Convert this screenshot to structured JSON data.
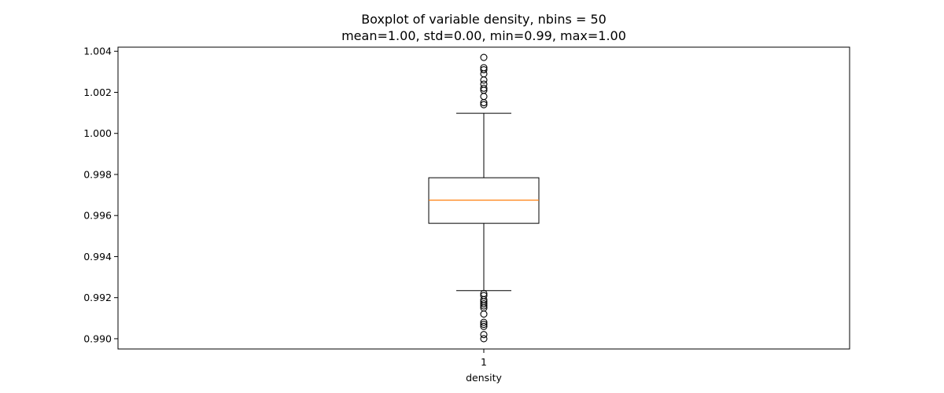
{
  "chart_data": {
    "type": "boxplot",
    "title_line1": "Boxplot of variable density, nbins = 50",
    "title_line2": "mean=1.00, std=0.00, min=0.99, max=1.00",
    "xlabel": "density",
    "x_tick_labels": [
      "1"
    ],
    "ylim": [
      0.9895,
      1.0042
    ],
    "y_ticks": [
      0.99,
      0.992,
      0.994,
      0.996,
      0.998,
      1.0,
      1.002,
      1.004
    ],
    "y_tick_labels": [
      "0.990",
      "0.992",
      "0.994",
      "0.996",
      "0.998",
      "1.000",
      "1.002",
      "1.004"
    ],
    "series": [
      {
        "name": "density",
        "position": 1,
        "q1": 0.99562,
        "median": 0.99675,
        "q3": 0.99784,
        "whisker_low": 0.99234,
        "whisker_high": 1.00098,
        "outliers": [
          1.0037,
          1.0032,
          1.0031,
          1.0029,
          1.0026,
          1.0024,
          1.0022,
          1.0021,
          1.0018,
          1.0015,
          1.0014,
          0.9922,
          0.9921,
          0.9919,
          0.9918,
          0.9917,
          0.9916,
          0.9915,
          0.9912,
          0.9908,
          0.9907,
          0.9906,
          0.9902,
          0.99
        ]
      }
    ],
    "colors": {
      "box": "#000000",
      "median": "#ff7f0e",
      "outlier": "#000000"
    }
  }
}
